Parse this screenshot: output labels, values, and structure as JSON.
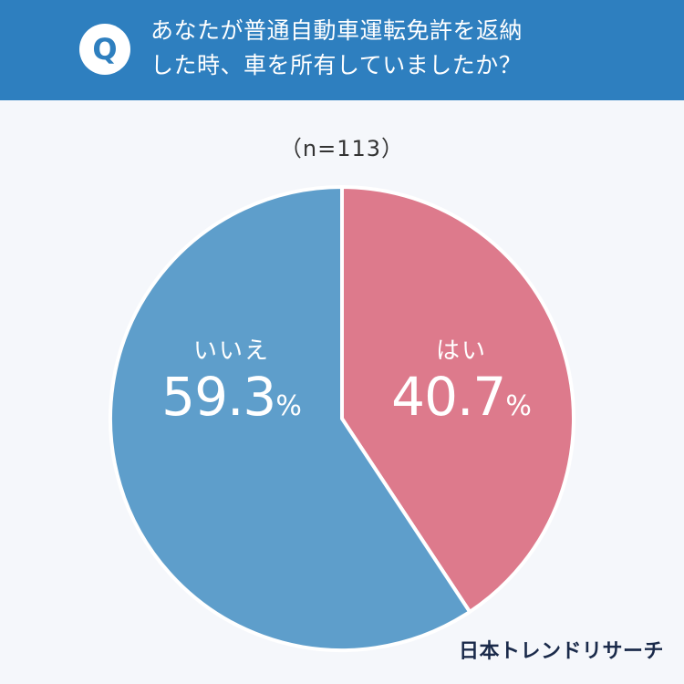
{
  "header": {
    "badge": "Q",
    "question_line1": "あなたが普通自動車運転免許を返納",
    "question_line2": "した時、車を所有していましたか？"
  },
  "sample_size": "（n=113）",
  "chart_data": {
    "type": "pie",
    "categories": [
      "はい",
      "いいえ"
    ],
    "values": [
      40.7,
      59.3
    ],
    "value_labels": [
      "40.7",
      "59.3"
    ],
    "unit": "%",
    "colors": [
      "#dd7a8c",
      "#5e9ecb"
    ],
    "start": "top, clockwise"
  },
  "brand": "日本トレンドリサーチ"
}
